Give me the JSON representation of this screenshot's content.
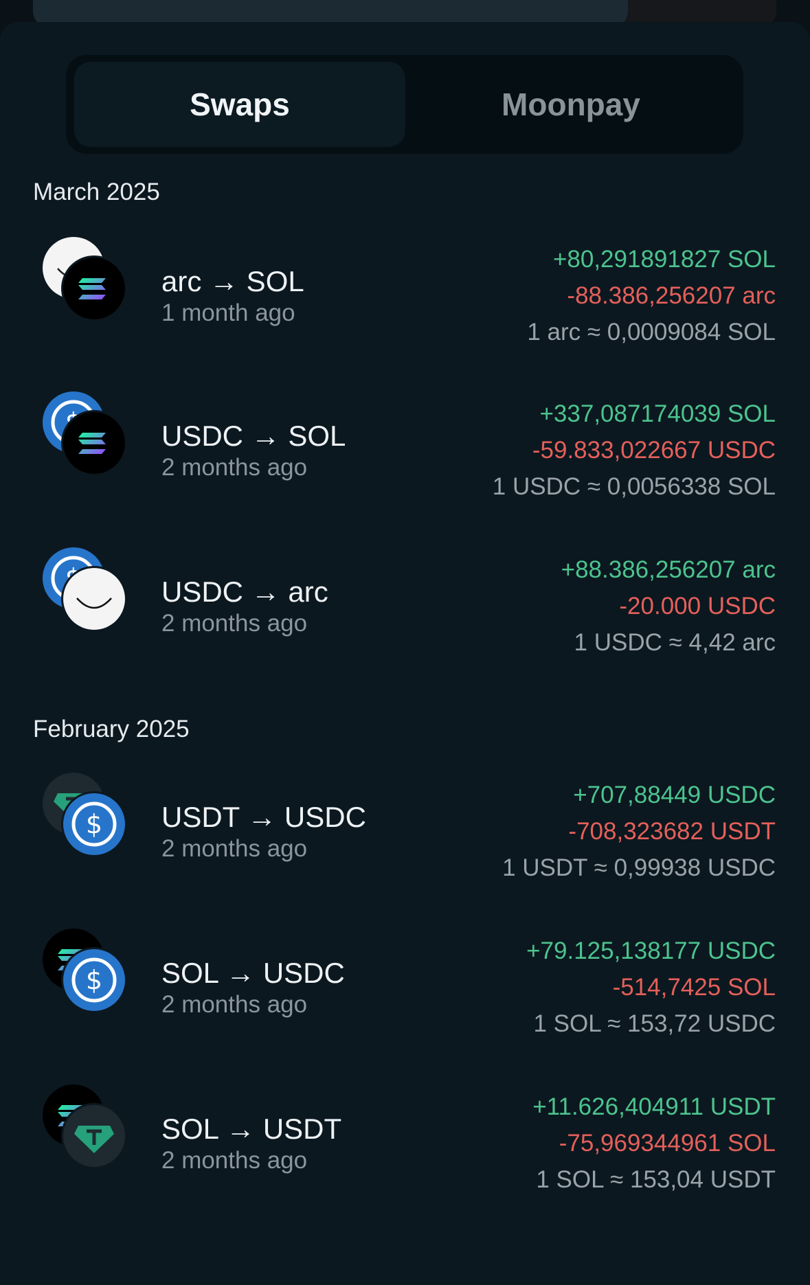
{
  "tabs": {
    "swaps": "Swaps",
    "moonpay": "Moonpay"
  },
  "groups": [
    {
      "month": "March 2025"
    },
    {
      "month": "February 2025"
    }
  ],
  "swaps": [
    {
      "pair": "arc → SOL",
      "time": "1 month ago",
      "received": "+80,291891827 SOL",
      "sent": "-88.386,256207 arc",
      "rate": "1 arc ≈ 0,0009084 SOL",
      "from_icon": "arc-token-icon",
      "to_icon": "solana-token-icon"
    },
    {
      "pair": "USDC → SOL",
      "time": "2 months ago",
      "received": "+337,087174039 SOL",
      "sent": "-59.833,022667 USDC",
      "rate": "1 USDC ≈ 0,0056338 SOL",
      "from_icon": "usdc-token-icon",
      "to_icon": "solana-token-icon"
    },
    {
      "pair": "USDC → arc",
      "time": "2 months ago",
      "received": "+88.386,256207 arc",
      "sent": "-20.000 USDC",
      "rate": "1 USDC ≈ 4,42 arc",
      "from_icon": "usdc-token-icon",
      "to_icon": "arc-token-icon"
    },
    {
      "pair": "USDT → USDC",
      "time": "2 months ago",
      "received": "+707,88449 USDC",
      "sent": "-708,323682 USDT",
      "rate": "1 USDT ≈ 0,99938 USDC",
      "from_icon": "usdt-token-icon",
      "to_icon": "usdc-token-icon"
    },
    {
      "pair": "SOL → USDC",
      "time": "2 months ago",
      "received": "+79.125,138177 USDC",
      "sent": "-514,7425 SOL",
      "rate": "1 SOL ≈ 153,72 USDC",
      "from_icon": "solana-token-icon",
      "to_icon": "usdc-token-icon"
    },
    {
      "pair": "SOL → USDT",
      "time": "2 months ago",
      "received": "+11.626,404911 USDT",
      "sent": "-75,969344961 SOL",
      "rate": "1 SOL ≈ 153,04 USDT",
      "from_icon": "solana-token-icon",
      "to_icon": "usdt-token-icon"
    }
  ],
  "colors": {
    "positive": "#4cc48e",
    "negative": "#e5605a",
    "background": "#0c1820"
  }
}
